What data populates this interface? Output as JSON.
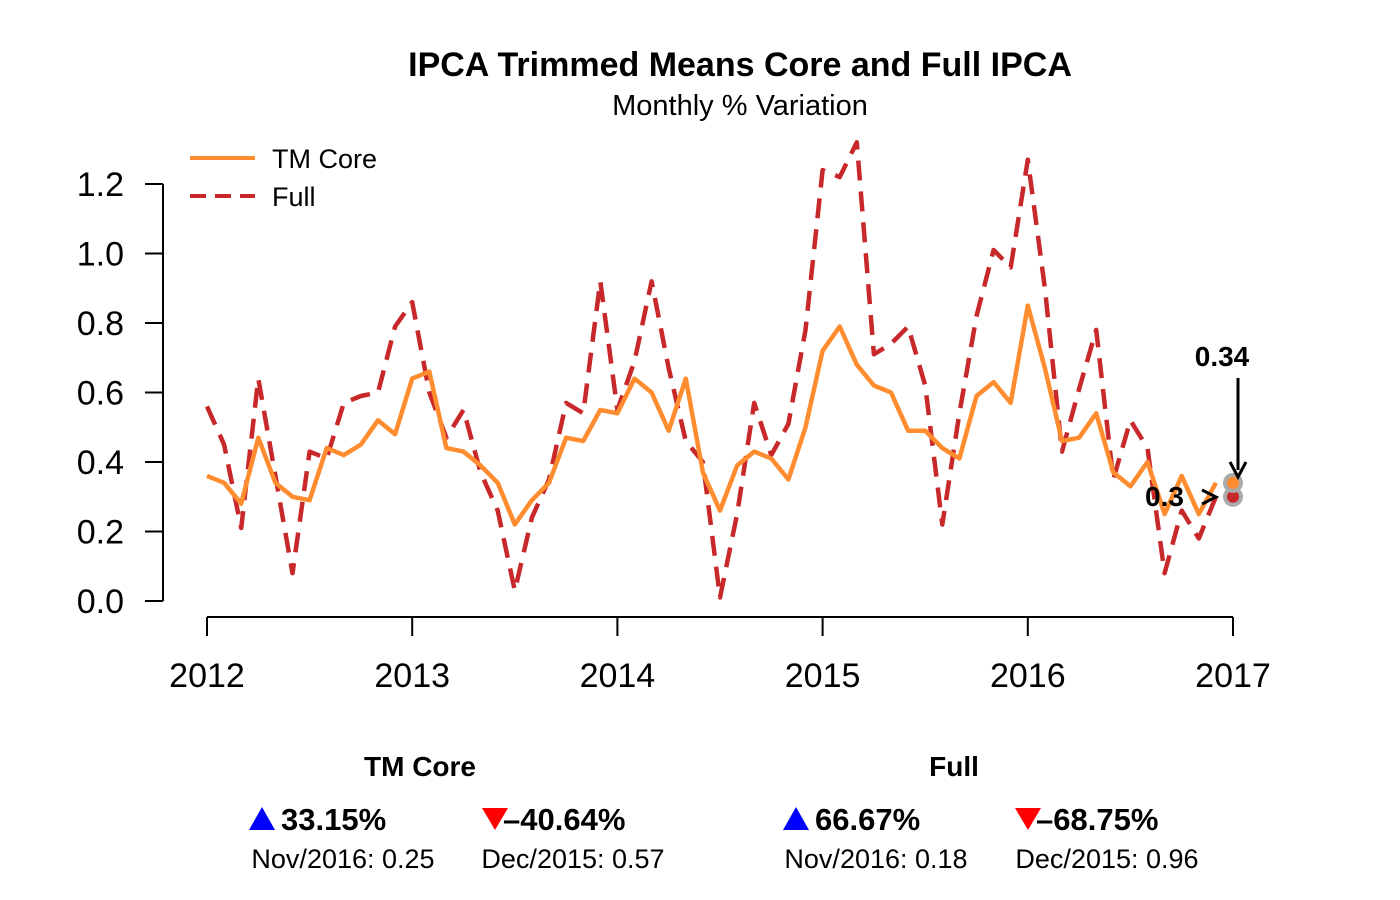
{
  "chart_data": {
    "type": "line",
    "title": "IPCA Trimmed Means Core and Full IPCA",
    "subtitle": "Monthly % Variation",
    "xlabel": "",
    "ylabel": "",
    "x_start": "2012-01",
    "x_ticks": [
      "2012",
      "2013",
      "2014",
      "2015",
      "2016",
      "2017"
    ],
    "y_ticks": [
      "0.0",
      "0.2",
      "0.4",
      "0.6",
      "0.8",
      "1.0",
      "1.2"
    ],
    "xlim": [
      "2012-01",
      "2017-01"
    ],
    "ylim": [
      0,
      1.3
    ],
    "grid": false,
    "legend_position": "top-left",
    "series": [
      {
        "name": "TM Core",
        "color": "#FF8C2E",
        "style": "solid",
        "values": [
          0.36,
          0.34,
          0.28,
          0.47,
          0.34,
          0.3,
          0.29,
          0.44,
          0.42,
          0.45,
          0.52,
          0.48,
          0.64,
          0.66,
          0.44,
          0.43,
          0.39,
          0.34,
          0.22,
          0.29,
          0.34,
          0.47,
          0.46,
          0.55,
          0.54,
          0.64,
          0.6,
          0.49,
          0.64,
          0.37,
          0.26,
          0.39,
          0.43,
          0.41,
          0.35,
          0.5,
          0.72,
          0.79,
          0.68,
          0.62,
          0.6,
          0.49,
          0.49,
          0.44,
          0.41,
          0.59,
          0.63,
          0.57,
          0.85,
          0.67,
          0.46,
          0.47,
          0.54,
          0.37,
          0.33,
          0.4,
          0.25,
          0.36,
          0.25,
          0.34
        ]
      },
      {
        "name": "Full",
        "color": "#C8282A",
        "style": "dashed",
        "values": [
          0.56,
          0.45,
          0.21,
          0.64,
          0.36,
          0.08,
          0.43,
          0.41,
          0.57,
          0.59,
          0.6,
          0.79,
          0.86,
          0.6,
          0.47,
          0.55,
          0.37,
          0.26,
          0.03,
          0.24,
          0.35,
          0.57,
          0.54,
          0.92,
          0.55,
          0.69,
          0.92,
          0.67,
          0.46,
          0.4,
          0.01,
          0.25,
          0.57,
          0.42,
          0.51,
          0.78,
          1.24,
          1.22,
          1.32,
          0.71,
          0.74,
          0.79,
          0.62,
          0.22,
          0.54,
          0.82,
          1.01,
          0.96,
          1.27,
          0.9,
          0.43,
          0.61,
          0.78,
          0.35,
          0.52,
          0.44,
          0.08,
          0.26,
          0.18,
          0.3
        ]
      }
    ],
    "endpoints": [
      {
        "label": "0.34",
        "value": 0.34,
        "color": "#FF8C2E"
      },
      {
        "label": "0.3",
        "value": 0.3,
        "color": "#C8282A"
      }
    ],
    "stats": [
      {
        "title": "TM Core",
        "increase_pct": "33.15%",
        "increase_ref": "Nov/2016: 0.25",
        "decrease_pct": "–40.64%",
        "decrease_ref": "Dec/2015: 0.57"
      },
      {
        "title": "Full",
        "increase_pct": "66.67%",
        "increase_ref": "Nov/2016: 0.18",
        "decrease_pct": "–68.75%",
        "decrease_ref": "Dec/2015: 0.96"
      }
    ],
    "colors": {
      "up_triangle": "#0000FF",
      "down_triangle": "#FF0000",
      "endpoint_ring": "#AAAAAA"
    }
  }
}
